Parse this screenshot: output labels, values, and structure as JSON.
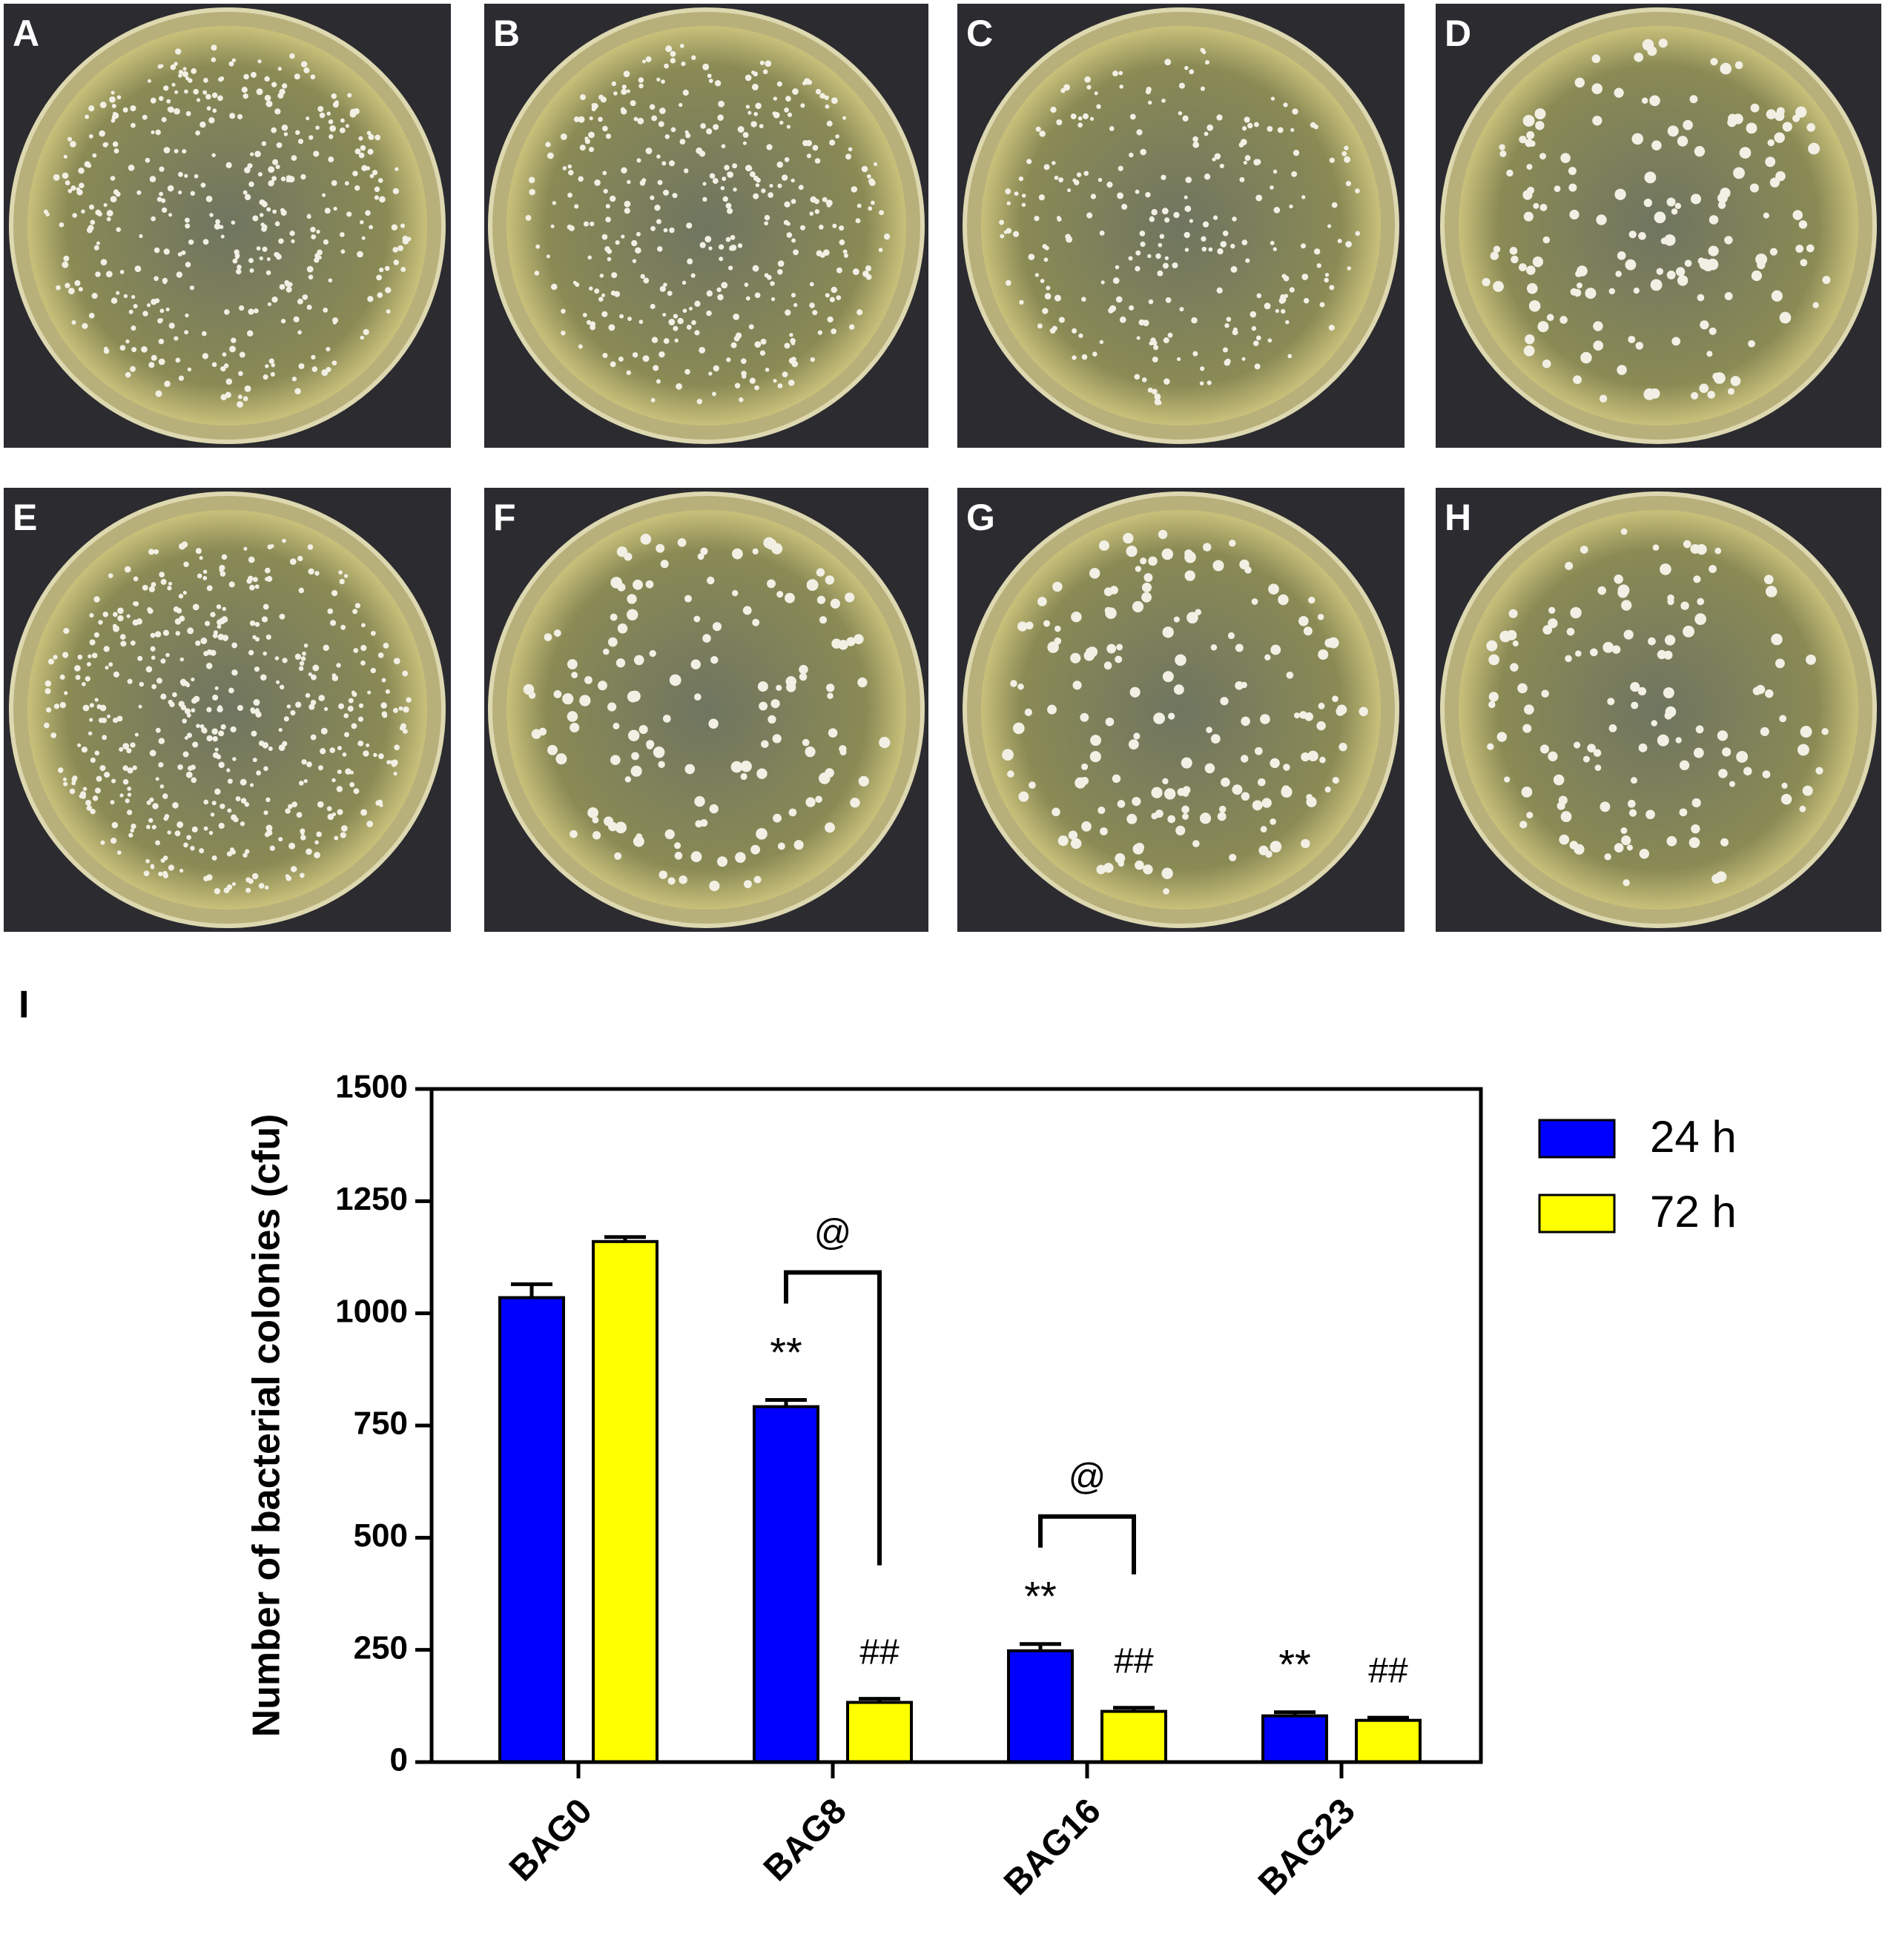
{
  "panels": [
    "A",
    "B",
    "C",
    "D",
    "E",
    "F",
    "G",
    "H"
  ],
  "chart_label": "I",
  "chart_data": {
    "type": "bar",
    "ylabel": "Number of bacterial colonies (cfu)",
    "categories": [
      "BAG0",
      "BAG8",
      "BAG16",
      "BAG23"
    ],
    "series": [
      {
        "name": "24 h",
        "color": "#0000ff",
        "values": [
          1035,
          792,
          248,
          103
        ],
        "errors": [
          30,
          15,
          15,
          8
        ],
        "annotations": [
          null,
          "**",
          "**",
          "**"
        ]
      },
      {
        "name": "72 h",
        "color": "#ffff00",
        "values": [
          1160,
          133,
          113,
          93
        ],
        "errors": [
          10,
          8,
          8,
          6
        ],
        "annotations": [
          null,
          "##",
          "##",
          "##"
        ]
      }
    ],
    "brackets": [
      null,
      "@",
      "@",
      null
    ],
    "ylim": [
      0,
      1500
    ],
    "yticks": [
      0,
      250,
      500,
      750,
      1000,
      1250,
      1500
    ],
    "legend": "right"
  }
}
